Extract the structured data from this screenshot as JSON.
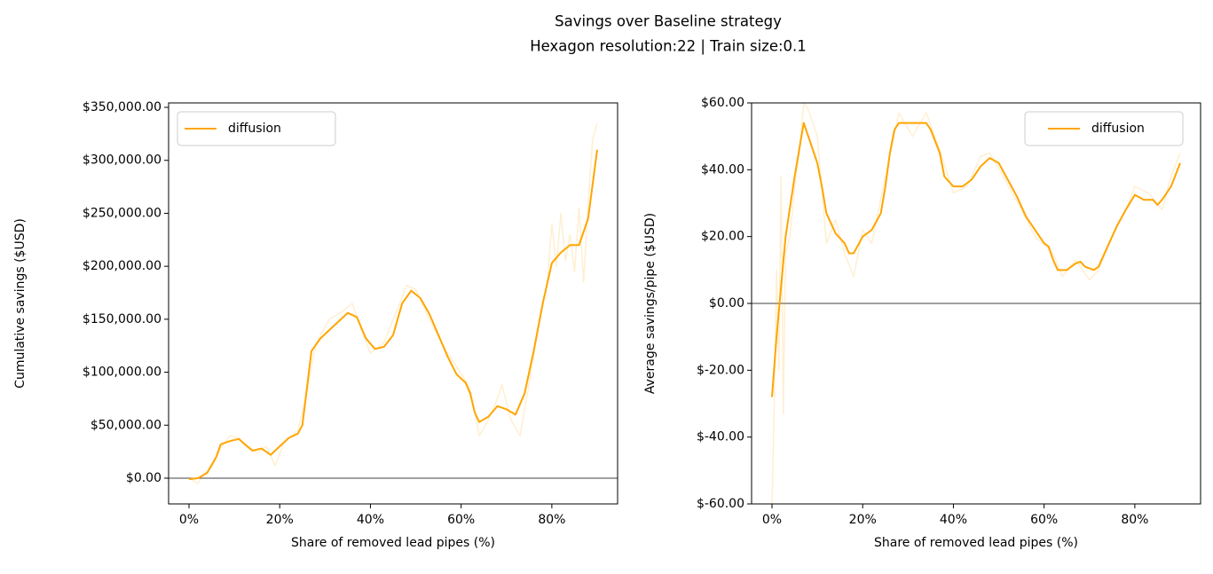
{
  "title": "Savings over Baseline strategy",
  "subtitle": "Hexagon resolution:22 | Train size:0.1",
  "chart_data": [
    {
      "type": "line",
      "xlabel": "Share of removed lead pipes (%)",
      "ylabel": "Cumulative savings ($USD)",
      "xlim": [
        -4.5,
        94.5
      ],
      "ylim": [
        -24300,
        354200
      ],
      "xticks": [
        {
          "value": 0,
          "label": "0%"
        },
        {
          "value": 20,
          "label": "20%"
        },
        {
          "value": 40,
          "label": "40%"
        },
        {
          "value": 60,
          "label": "60%"
        },
        {
          "value": 80,
          "label": "80%"
        }
      ],
      "yticks": [
        {
          "value": 0,
          "label": "$0.00"
        },
        {
          "value": 50000,
          "label": "$50,000.00"
        },
        {
          "value": 100000,
          "label": "$100,000.00"
        },
        {
          "value": 150000,
          "label": "$150,000.00"
        },
        {
          "value": 200000,
          "label": "$200,000.00"
        },
        {
          "value": 250000,
          "label": "$250,000.00"
        },
        {
          "value": 300000,
          "label": "$300,000.00"
        },
        {
          "value": 350000,
          "label": "$350,000.00"
        }
      ],
      "axhline": 0,
      "legend": "upper left",
      "series": [
        {
          "color": "#ffa500",
          "opacity": 0.18,
          "x": [
            0,
            2,
            3,
            5,
            7,
            9,
            11,
            13,
            15,
            17,
            19,
            21,
            24,
            26,
            28,
            31,
            34,
            36,
            38,
            40,
            43,
            46,
            48,
            50,
            53,
            56,
            59,
            62,
            64,
            66,
            68,
            69,
            71,
            73,
            75,
            77,
            79,
            80,
            81,
            82,
            83,
            84,
            85,
            86,
            87,
            88,
            89,
            90
          ],
          "values": [
            0,
            -5000,
            3000,
            10000,
            28000,
            40000,
            38000,
            30000,
            24000,
            30000,
            12000,
            34000,
            45000,
            80000,
            128000,
            150000,
            158000,
            165000,
            140000,
            118000,
            128000,
            160000,
            182000,
            178000,
            150000,
            125000,
            105000,
            85000,
            40000,
            55000,
            75000,
            88000,
            55000,
            40000,
            90000,
            140000,
            185000,
            240000,
            200000,
            250000,
            205000,
            230000,
            195000,
            255000,
            185000,
            260000,
            320000,
            335000
          ]
        },
        {
          "name": "diffusion",
          "color": "#ffa500",
          "opacity": 1,
          "x": [
            0,
            2,
            4,
            6,
            7,
            9,
            11,
            12,
            14,
            16,
            18,
            20,
            22,
            24,
            25,
            26,
            27,
            29,
            31,
            33,
            35,
            37,
            39,
            41,
            43,
            45,
            47,
            49,
            51,
            53,
            55,
            57,
            59,
            61,
            62,
            63,
            64,
            66,
            68,
            70,
            72,
            74,
            76,
            78,
            80,
            82,
            84,
            86,
            88,
            90
          ],
          "values": [
            -1000,
            0,
            5000,
            20000,
            32000,
            35000,
            37000,
            33000,
            26000,
            28000,
            22000,
            30000,
            38000,
            42000,
            50000,
            85000,
            120000,
            132000,
            140000,
            148000,
            156000,
            152000,
            132000,
            122000,
            124000,
            135000,
            165000,
            177000,
            170000,
            155000,
            135000,
            115000,
            98000,
            90000,
            80000,
            62000,
            53000,
            58000,
            68000,
            65000,
            60000,
            80000,
            120000,
            165000,
            203000,
            213000,
            220000,
            220000,
            245000,
            310000
          ]
        }
      ]
    },
    {
      "type": "line",
      "xlabel": "Share of removed lead pipes (%)",
      "ylabel": "Average savings/pipe ($USD)",
      "xlim": [
        -4.5,
        94.5
      ],
      "ylim": [
        -60,
        60
      ],
      "xticks": [
        {
          "value": 0,
          "label": "0%"
        },
        {
          "value": 20,
          "label": "20%"
        },
        {
          "value": 40,
          "label": "40%"
        },
        {
          "value": 60,
          "label": "60%"
        },
        {
          "value": 80,
          "label": "80%"
        }
      ],
      "yticks": [
        {
          "value": -60,
          "label": "$-60.00"
        },
        {
          "value": -40,
          "label": "$-40.00"
        },
        {
          "value": -20,
          "label": "$-20.00"
        },
        {
          "value": 0,
          "label": "$0.00"
        },
        {
          "value": 20,
          "label": "$20.00"
        },
        {
          "value": 40,
          "label": "$40.00"
        },
        {
          "value": 60,
          "label": "$60.00"
        }
      ],
      "axhline": 0,
      "legend": "upper right",
      "series": [
        {
          "color": "#ffa500",
          "opacity": 0.18,
          "x": [
            0,
            0.5,
            1,
            1.5,
            2,
            2.5,
            3,
            4,
            5,
            6,
            7,
            8,
            10,
            12,
            14,
            16,
            18,
            20,
            22,
            25,
            28,
            31,
            34,
            37,
            40,
            43,
            46,
            48,
            51,
            55,
            58,
            62,
            64,
            67,
            70,
            72,
            75,
            78,
            80,
            83,
            86,
            88,
            90
          ],
          "values": [
            -60,
            -30,
            10,
            -20,
            38,
            -33,
            15,
            20,
            35,
            45,
            60,
            58,
            50,
            18,
            25,
            15,
            8,
            22,
            18,
            38,
            57,
            50,
            57,
            46,
            33,
            35,
            44,
            45,
            38,
            28,
            20,
            15,
            8,
            13,
            7,
            10,
            20,
            28,
            35,
            33,
            28,
            38,
            45
          ]
        },
        {
          "name": "diffusion",
          "color": "#ffa500",
          "opacity": 1,
          "x": [
            0,
            1,
            2,
            3,
            5,
            7,
            8,
            9,
            10,
            11,
            12,
            14,
            16,
            17,
            18,
            20,
            22,
            24,
            25,
            26,
            27,
            28,
            30,
            32,
            34,
            35,
            37,
            38,
            40,
            42,
            44,
            46,
            48,
            50,
            52,
            54,
            56,
            58,
            60,
            61,
            62,
            63,
            65,
            67,
            68,
            69,
            71,
            72,
            74,
            76,
            78,
            80,
            82,
            84,
            85,
            86,
            88,
            90
          ],
          "values": [
            -28,
            -10,
            5,
            20,
            38,
            54,
            50,
            46,
            42,
            35,
            27,
            21,
            18,
            15,
            15,
            20,
            22,
            27,
            35,
            45,
            52,
            54,
            54,
            54,
            54,
            52,
            45,
            38,
            35,
            35,
            37,
            41,
            43.5,
            42,
            37,
            32,
            26,
            22,
            18,
            17,
            13,
            10,
            10,
            12,
            12.5,
            11,
            10,
            11,
            17,
            23,
            28,
            32.5,
            31,
            31,
            29.5,
            31,
            35,
            42
          ]
        }
      ]
    }
  ]
}
